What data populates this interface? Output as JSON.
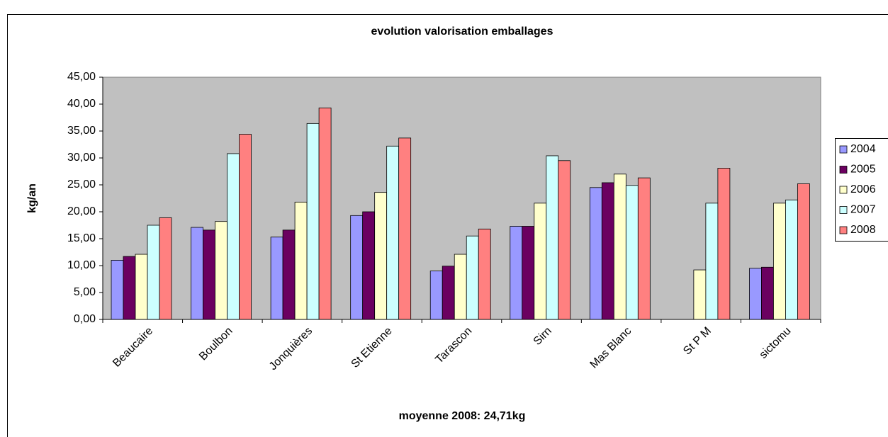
{
  "chart_data": {
    "type": "bar",
    "title": "evolution valorisation emballages",
    "x_label": "moyenne 2008: 24,71kg",
    "y_label": "kg/an",
    "categories": [
      "Beaucaire",
      "Boulbon",
      "Jonquières",
      "St Etienne",
      "Tarascon",
      "Sirn",
      "Mas Blanc",
      "St P M",
      "sictomu"
    ],
    "series": [
      {
        "name": "2004",
        "color": "#9999ff",
        "values": [
          11.0,
          17.1,
          15.3,
          19.3,
          9.0,
          17.3,
          24.5,
          null,
          9.5
        ]
      },
      {
        "name": "2005",
        "color": "#6b0060",
        "values": [
          11.7,
          16.6,
          16.6,
          20.0,
          9.9,
          17.3,
          25.4,
          null,
          9.7
        ]
      },
      {
        "name": "2006",
        "color": "#ffffcc",
        "values": [
          12.1,
          18.2,
          21.8,
          23.6,
          12.1,
          21.6,
          27.0,
          9.2,
          21.6
        ]
      },
      {
        "name": "2007",
        "color": "#ccffff",
        "values": [
          17.5,
          30.8,
          36.4,
          32.2,
          15.5,
          30.4,
          24.9,
          21.6,
          22.2
        ]
      },
      {
        "name": "2008",
        "color": "#ff8080",
        "values": [
          18.9,
          34.4,
          39.3,
          33.7,
          16.8,
          29.5,
          26.3,
          28.1,
          25.2
        ]
      }
    ],
    "ylim": [
      0,
      45
    ],
    "yticks": [
      {
        "value": 0,
        "label": "0,00"
      },
      {
        "value": 5,
        "label": "5,00"
      },
      {
        "value": 10,
        "label": "10,00"
      },
      {
        "value": 15,
        "label": "15,00"
      },
      {
        "value": 20,
        "label": "20,00"
      },
      {
        "value": 25,
        "label": "25,00"
      },
      {
        "value": 30,
        "label": "30,00"
      },
      {
        "value": 35,
        "label": "35,00"
      },
      {
        "value": 40,
        "label": "40,00"
      },
      {
        "value": 45,
        "label": "45,00"
      }
    ],
    "grid": false,
    "legend": "right",
    "plot_background": "#c0c0c0"
  }
}
